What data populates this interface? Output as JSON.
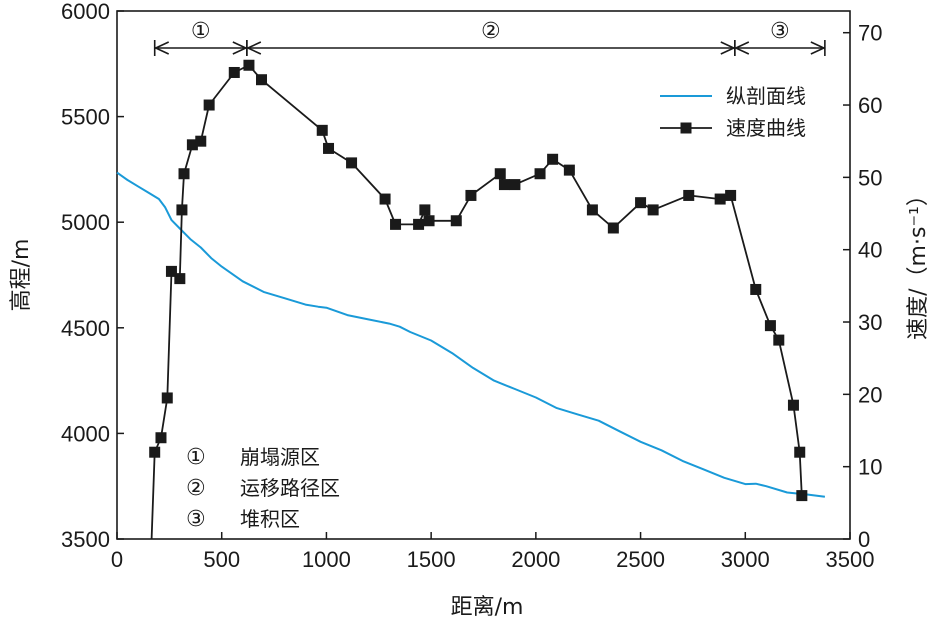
{
  "chart_data": {
    "type": "line",
    "xlabel": "距离/m",
    "ylabel_left": "高程/m",
    "ylabel_right": "速度/（m·s⁻¹）",
    "xlim": [
      0,
      3500
    ],
    "ylim_left": [
      3500,
      6000
    ],
    "ylim_right": [
      0,
      73
    ],
    "x_ticks": [
      "0",
      "500",
      "1000",
      "1500",
      "2000",
      "2500",
      "3000",
      "3500"
    ],
    "y_left_ticks": [
      "3500",
      "4000",
      "4500",
      "5000",
      "5500",
      "6000"
    ],
    "y_right_ticks": [
      "0",
      "10",
      "20",
      "30",
      "40",
      "50",
      "60",
      "70"
    ],
    "grid": false,
    "legend_placement": "top-right",
    "legend": [
      {
        "label": "纵剖面线",
        "color": "#1a9ad8",
        "marker": "none"
      },
      {
        "label": "速度曲线",
        "color": "#1a1a1a",
        "marker": "square"
      }
    ],
    "zones": [
      {
        "marker": "①",
        "from": 180,
        "to": 620
      },
      {
        "marker": "②",
        "from": 620,
        "to": 2950
      },
      {
        "marker": "③",
        "from": 2950,
        "to": 3380
      }
    ],
    "zone_notes": [
      {
        "marker": "①",
        "text": "崩塌源区"
      },
      {
        "marker": "②",
        "text": "运移路径区"
      },
      {
        "marker": "③",
        "text": "堆积区"
      }
    ],
    "series": [
      {
        "name": "纵剖面线",
        "axis": "left",
        "color": "#1a9ad8",
        "x": [
          0,
          50,
          100,
          150,
          200,
          230,
          260,
          300,
          350,
          400,
          450,
          500,
          600,
          700,
          800,
          900,
          960,
          1000,
          1100,
          1200,
          1300,
          1350,
          1400,
          1500,
          1600,
          1700,
          1800,
          1850,
          1900,
          2000,
          2100,
          2200,
          2300,
          2400,
          2500,
          2600,
          2700,
          2800,
          2900,
          3000,
          3050,
          3100,
          3200,
          3300,
          3380
        ],
        "y": [
          5235,
          5200,
          5170,
          5140,
          5110,
          5070,
          5010,
          4970,
          4920,
          4880,
          4830,
          4790,
          4720,
          4670,
          4640,
          4610,
          4600,
          4595,
          4560,
          4540,
          4520,
          4505,
          4480,
          4440,
          4380,
          4310,
          4250,
          4230,
          4210,
          4170,
          4120,
          4090,
          4060,
          4010,
          3960,
          3920,
          3870,
          3830,
          3790,
          3760,
          3762,
          3750,
          3720,
          3710,
          3700
        ]
      },
      {
        "name": "速度曲线",
        "axis": "right",
        "color": "#1a1a1a",
        "x": [
          165,
          180,
          210,
          240,
          260,
          300,
          310,
          320,
          360,
          400,
          440,
          560,
          630,
          690,
          980,
          1010,
          1120,
          1280,
          1330,
          1440,
          1470,
          1490,
          1620,
          1690,
          1830,
          1850,
          1900,
          2020,
          2080,
          2160,
          2270,
          2370,
          2500,
          2560,
          2730,
          2880,
          2930,
          3050,
          3120,
          3160,
          3230,
          3260,
          3270
        ],
        "y": [
          0,
          12,
          14,
          19.5,
          37,
          36,
          45.5,
          50.5,
          54.5,
          55,
          60,
          64.5,
          65.5,
          63.5,
          56.5,
          54,
          52,
          47,
          43.5,
          43.5,
          45.5,
          44,
          44,
          47.5,
          50.5,
          49,
          49,
          50.5,
          52.5,
          51,
          45.5,
          43,
          46.5,
          45.5,
          47.5,
          47,
          47.5,
          34.5,
          29.5,
          27.5,
          18.5,
          12,
          6
        ]
      }
    ]
  }
}
